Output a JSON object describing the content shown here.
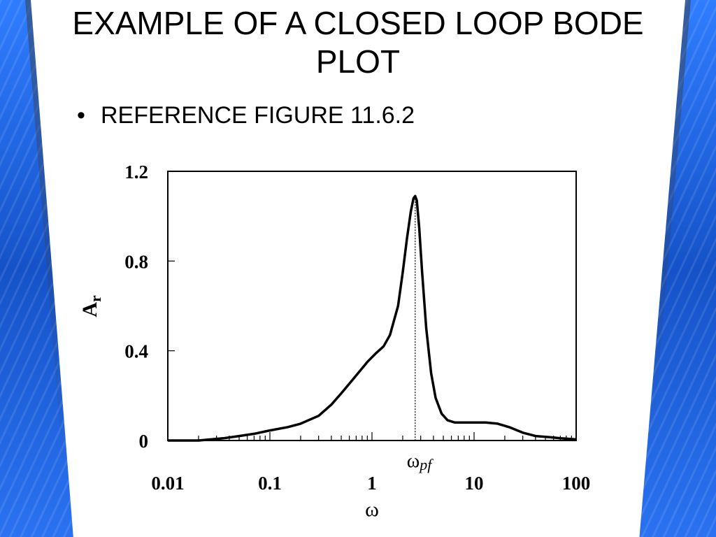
{
  "slide": {
    "title": "EXAMPLE OF A CLOSED LOOP BODE PLOT",
    "bullet": "REFERENCE FIGURE 11.6.2"
  },
  "chart_data": {
    "type": "line",
    "title": "",
    "xlabel": "ω",
    "ylabel": "A",
    "ylabel_subscript": "r",
    "xscale": "log",
    "xlim": [
      0.01,
      100
    ],
    "ylim": [
      0,
      1.2
    ],
    "x_tick_labels": [
      "0.01",
      "0.1",
      "1",
      "10",
      "100"
    ],
    "x_tick_values": [
      0.01,
      0.1,
      1,
      10,
      100
    ],
    "y_tick_labels": [
      "0",
      "0.4",
      "0.8",
      "1.2"
    ],
    "y_tick_values": [
      0,
      0.4,
      0.8,
      1.2
    ],
    "grid": false,
    "annotation": {
      "label": "ω",
      "label_subscript": "pf",
      "x": 2.65,
      "style": "dotted vertical line at peak frequency"
    },
    "series": [
      {
        "color": "#000000",
        "x": [
          0.01,
          0.02,
          0.035,
          0.05,
          0.07,
          0.1,
          0.15,
          0.2,
          0.3,
          0.4,
          0.5,
          0.7,
          0.9,
          1.1,
          1.3,
          1.5,
          1.8,
          2.0,
          2.2,
          2.4,
          2.55,
          2.65,
          2.75,
          2.9,
          3.1,
          3.4,
          3.8,
          4.2,
          4.8,
          5.5,
          6.5,
          8,
          10,
          13,
          17,
          22,
          30,
          40,
          55,
          70,
          100
        ],
        "values": [
          0.0,
          0.0,
          0.01,
          0.02,
          0.03,
          0.045,
          0.06,
          0.075,
          0.11,
          0.16,
          0.21,
          0.29,
          0.35,
          0.39,
          0.42,
          0.47,
          0.6,
          0.75,
          0.9,
          1.02,
          1.08,
          1.09,
          1.07,
          0.95,
          0.75,
          0.5,
          0.3,
          0.19,
          0.12,
          0.09,
          0.08,
          0.08,
          0.08,
          0.08,
          0.075,
          0.06,
          0.035,
          0.02,
          0.015,
          0.01,
          0.005
        ]
      }
    ]
  }
}
